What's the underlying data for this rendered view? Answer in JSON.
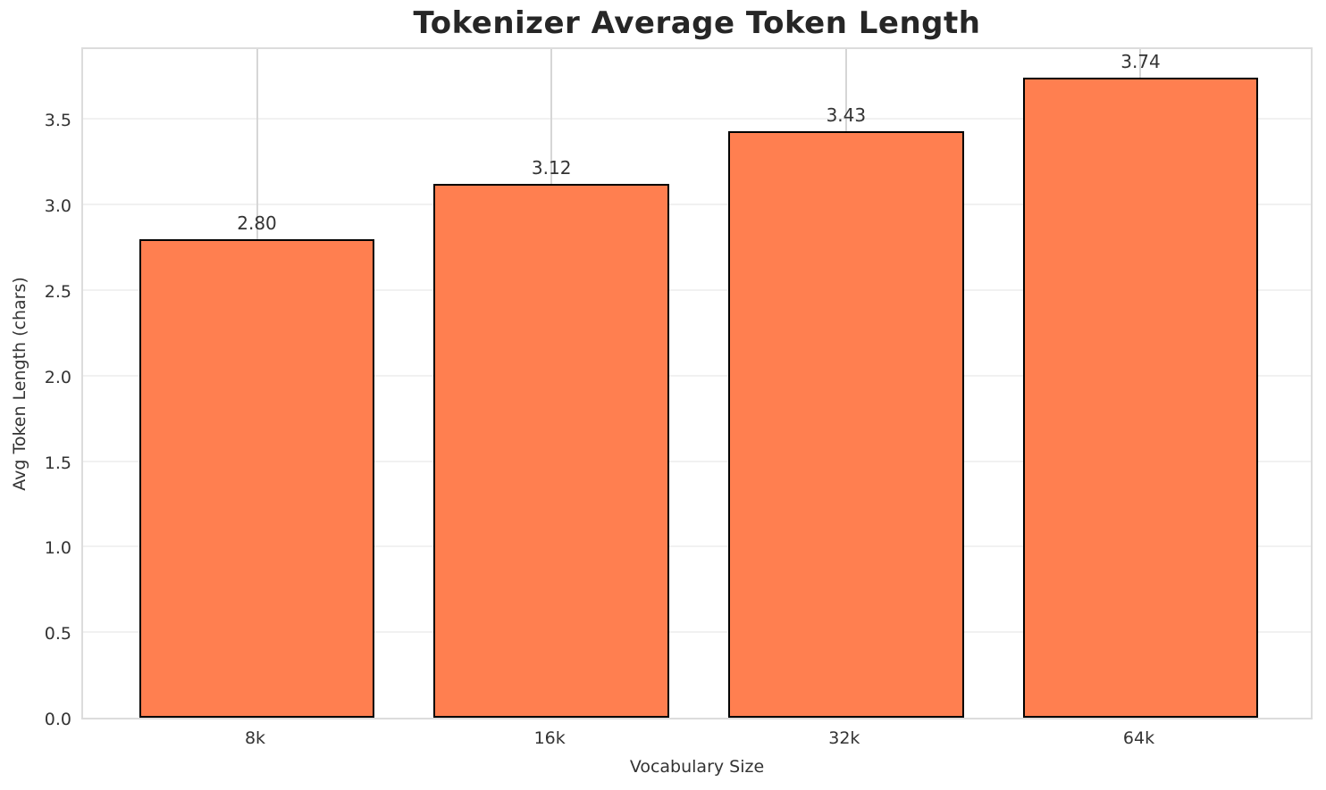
{
  "chart_data": {
    "type": "bar",
    "title": "Tokenizer Average Token Length",
    "xlabel": "Vocabulary Size",
    "ylabel": "Avg Token Length (chars)",
    "categories": [
      "8k",
      "16k",
      "32k",
      "64k"
    ],
    "values": [
      2.8,
      3.12,
      3.43,
      3.74
    ],
    "bar_labels": [
      "2.80",
      "3.12",
      "3.43",
      "3.74"
    ],
    "yticks": [
      0.0,
      0.5,
      1.0,
      1.5,
      2.0,
      2.5,
      3.0,
      3.5
    ],
    "ytick_labels": [
      "0.0",
      "0.5",
      "1.0",
      "1.5",
      "2.0",
      "2.5",
      "3.0",
      "3.5"
    ],
    "ylim": [
      0,
      3.93
    ],
    "xlim": [
      -0.59,
      3.59
    ],
    "bar_width": 0.8,
    "grid": true,
    "legend": false,
    "colors": {
      "bar_fill": "#FF7F50",
      "bar_edge": "#000000",
      "grid_horizontal": "#f1f1f1",
      "grid_vertical": "#d6d6d6",
      "spine": "#dcdcdc",
      "title_text": "#262626",
      "tick_text": "#333333",
      "background": "#ffffff"
    }
  }
}
